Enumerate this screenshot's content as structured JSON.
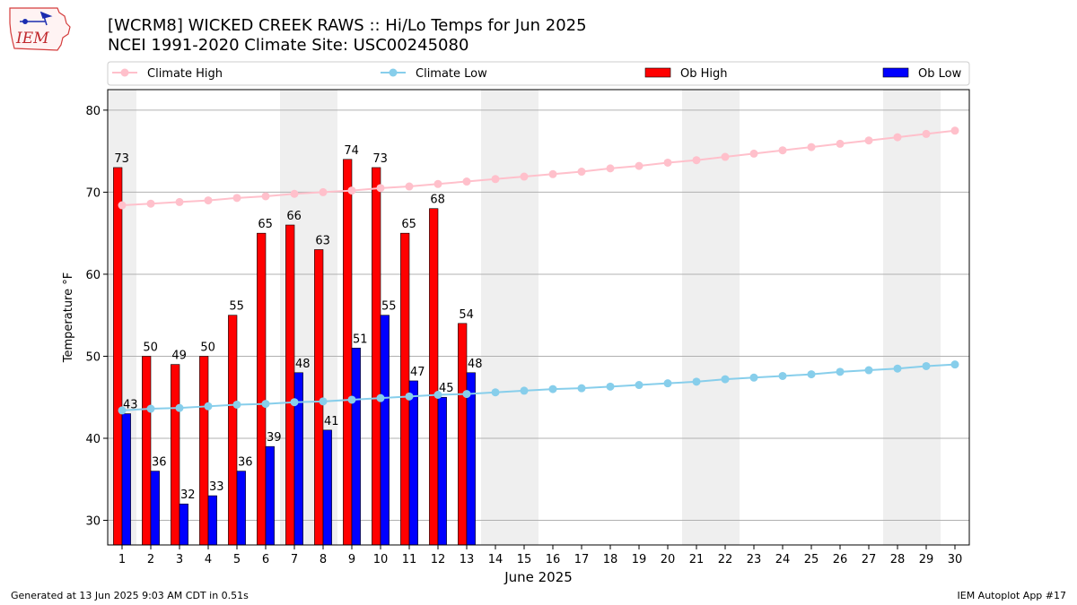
{
  "header": {
    "title_line1": "[WCRM8] WICKED CREEK RAWS :: Hi/Lo Temps for Jun 2025",
    "title_line2": "NCEI 1991-2020 Climate Site: USC00245080"
  },
  "logo": {
    "text": "IEM"
  },
  "footer": {
    "generated": "Generated at 13 Jun 2025 9:03 AM CDT in 0.51s",
    "app": "IEM Autoplot App #17"
  },
  "chart_data": {
    "type": "bar",
    "xlabel": "June 2025",
    "ylabel": "Temperature °F",
    "ylim": [
      27,
      82.5
    ],
    "yticks": [
      30,
      40,
      50,
      60,
      70,
      80
    ],
    "grid": "y",
    "legend_placement": "top",
    "legend": [
      "Climate High",
      "Climate Low",
      "Ob High",
      "Ob Low"
    ],
    "weekend_shading_days": [
      1,
      7,
      8,
      14,
      15,
      21,
      22,
      28,
      29
    ],
    "days": [
      1,
      2,
      3,
      4,
      5,
      6,
      7,
      8,
      9,
      10,
      11,
      12,
      13,
      14,
      15,
      16,
      17,
      18,
      19,
      20,
      21,
      22,
      23,
      24,
      25,
      26,
      27,
      28,
      29,
      30
    ],
    "series": [
      {
        "name": "Ob High",
        "kind": "bar",
        "color": "#ff0000",
        "values": [
          73,
          50,
          49,
          50,
          55,
          65,
          66,
          63,
          74,
          73,
          65,
          68,
          54
        ]
      },
      {
        "name": "Ob Low",
        "kind": "bar",
        "color": "#0000ff",
        "values": [
          43,
          36,
          32,
          33,
          36,
          39,
          48,
          41,
          51,
          55,
          47,
          45,
          48
        ]
      },
      {
        "name": "Climate High",
        "kind": "line",
        "color": "#ffc0cb",
        "values": [
          68.4,
          68.6,
          68.8,
          69.0,
          69.3,
          69.5,
          69.8,
          70.0,
          70.2,
          70.5,
          70.7,
          71.0,
          71.3,
          71.6,
          71.9,
          72.2,
          72.5,
          72.9,
          73.2,
          73.6,
          73.9,
          74.3,
          74.7,
          75.1,
          75.5,
          75.9,
          76.3,
          76.7,
          77.1,
          77.5
        ]
      },
      {
        "name": "Climate Low",
        "kind": "line",
        "color": "#87ceeb",
        "values": [
          43.4,
          43.6,
          43.7,
          43.9,
          44.1,
          44.2,
          44.4,
          44.5,
          44.7,
          44.9,
          45.1,
          45.3,
          45.4,
          45.6,
          45.8,
          46.0,
          46.1,
          46.3,
          46.5,
          46.7,
          46.9,
          47.2,
          47.4,
          47.6,
          47.8,
          48.1,
          48.3,
          48.5,
          48.8,
          49.0
        ]
      }
    ]
  }
}
